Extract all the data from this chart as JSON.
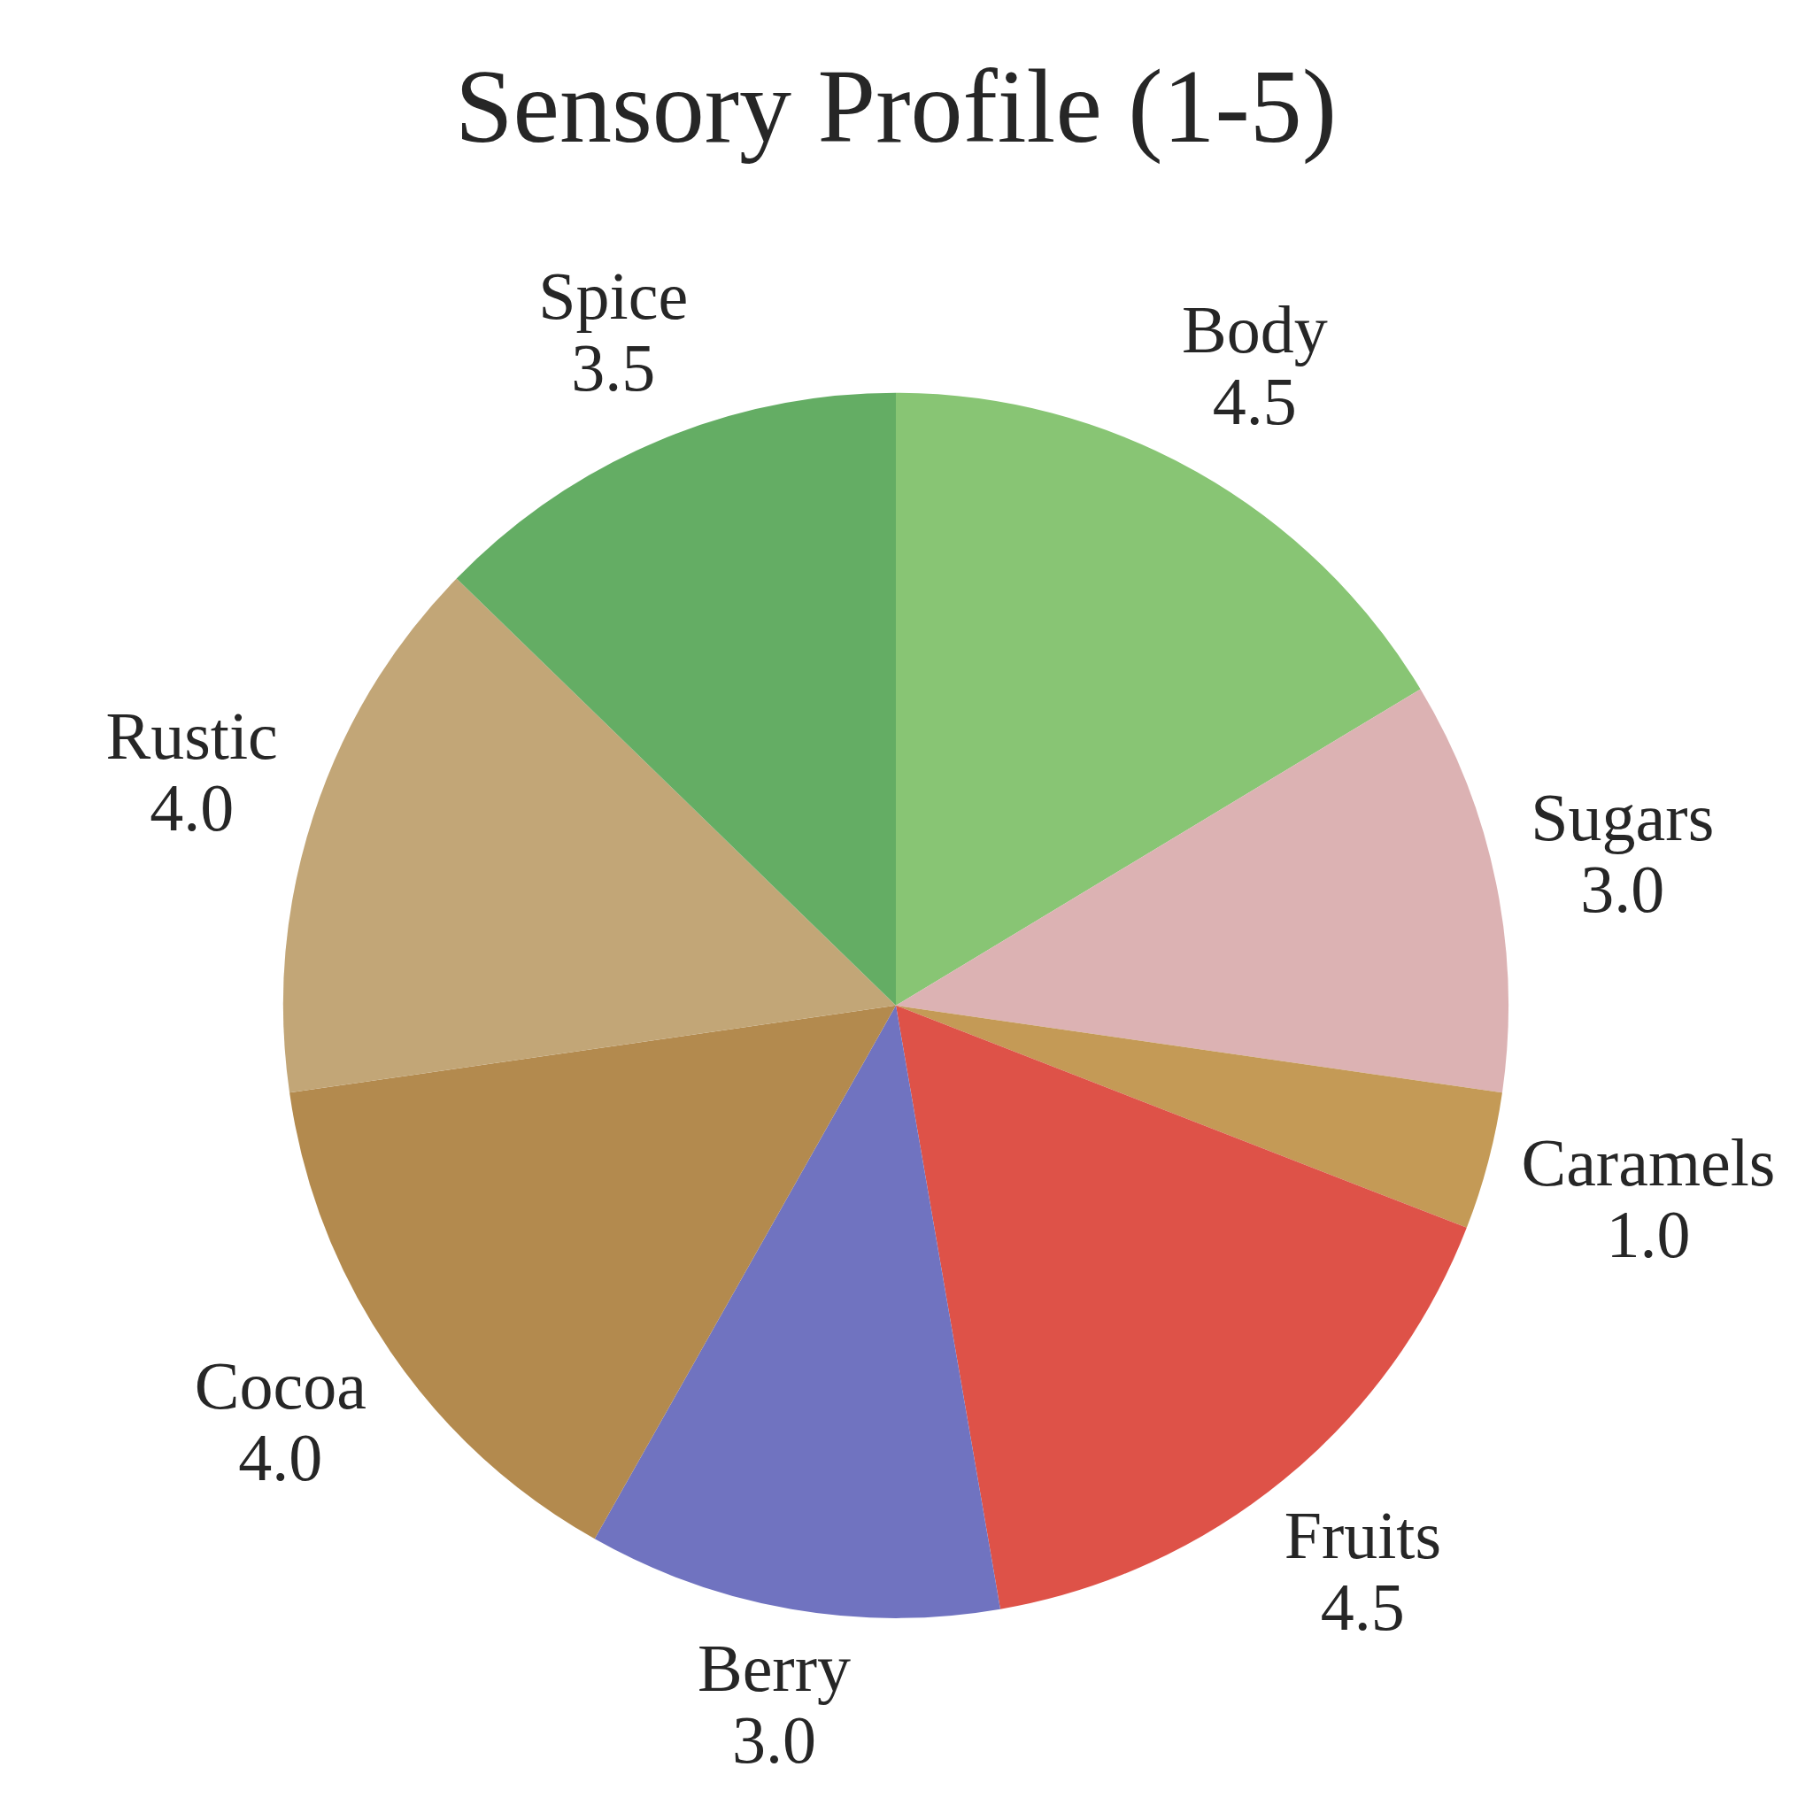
{
  "chart_data": {
    "type": "pie",
    "title": "Sensory Profile (1-5)",
    "categories": [
      "Body",
      "Sugars",
      "Caramels",
      "Fruits",
      "Berry",
      "Cocoa",
      "Rustic",
      "Spice"
    ],
    "values": [
      4.5,
      3.0,
      1.0,
      4.5,
      3.0,
      4.0,
      4.0,
      3.5
    ],
    "value_labels": [
      "4.5",
      "3.0",
      "1.0",
      "4.5",
      "3.0",
      "4.0",
      "4.0",
      "3.5"
    ],
    "colors": [
      "#88c574",
      "#dcb2b3",
      "#c49a56",
      "#de5248",
      "#7073c0",
      "#b38a4e",
      "#c2a677",
      "#64ad64"
    ]
  }
}
